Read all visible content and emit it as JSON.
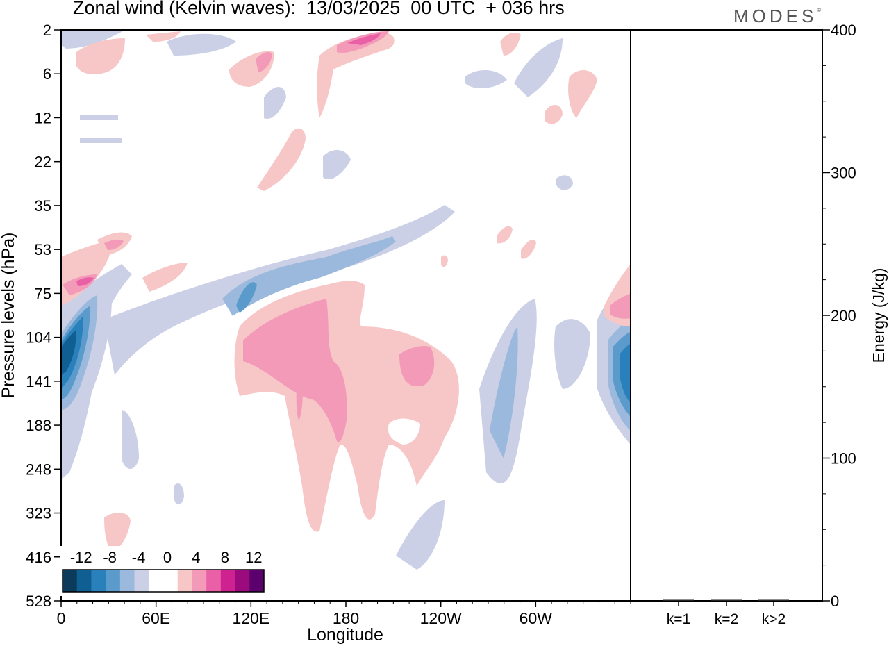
{
  "header": {
    "title": "Zonal wind (Kelvin waves):  13/03/2025  00 UTC  + 036 hrs",
    "brand": "MODES",
    "brand_mark": "©"
  },
  "chart_data": [
    {
      "type": "heatmap",
      "title": "Zonal wind (Kelvin waves):  13/03/2025  00 UTC  + 036 hrs",
      "xlabel": "Longitude",
      "ylabel": "Pressure levels (hPa)",
      "x_ticks": [
        "0",
        "60E",
        "120E",
        "180",
        "120W",
        "60W"
      ],
      "x_tick_degrees": [
        0,
        60,
        120,
        180,
        240,
        300
      ],
      "xlim": [
        0,
        360
      ],
      "y_ticks": [
        "2",
        "6",
        "12",
        "22",
        "35",
        "53",
        "75",
        "104",
        "141",
        "188",
        "248",
        "323",
        "416",
        "528"
      ],
      "colorbar": {
        "labels": [
          "-12",
          "-8",
          "-4",
          "0",
          "4",
          "8",
          "12"
        ],
        "colors": [
          "#0b3a5a",
          "#0f5f93",
          "#2a80bb",
          "#5b9bcc",
          "#9bb8dd",
          "#cbd0e6",
          "#ffffff",
          "#ffffff",
          "#f7c7c7",
          "#f39ab8",
          "#ea60a6",
          "#cd2290",
          "#9c0b7e",
          "#5c006e"
        ]
      },
      "features": [
        {
          "sign": "positive",
          "x_deg": [
            100,
            230
          ],
          "y_level": [
            75,
            248
          ],
          "strength": 6
        },
        {
          "sign": "positive",
          "x_deg": [
            150,
            190
          ],
          "y_level": [
            141,
            416
          ],
          "strength": 3
        },
        {
          "sign": "positive",
          "x_deg": [
            180,
            200
          ],
          "y_level": [
            2,
            6
          ],
          "strength": 9
        },
        {
          "sign": "positive",
          "x_deg": [
            0,
            40
          ],
          "y_level": [
            53,
            75
          ],
          "strength": 8
        },
        {
          "sign": "positive",
          "x_deg": [
            345,
            360
          ],
          "y_level": [
            75,
            104
          ],
          "strength": 6
        },
        {
          "sign": "negative",
          "x_deg": [
            0,
            30
          ],
          "y_level": [
            75,
            188
          ],
          "strength": -12
        },
        {
          "sign": "negative",
          "x_deg": [
            340,
            360
          ],
          "y_level": [
            104,
            188
          ],
          "strength": -10
        },
        {
          "sign": "negative",
          "x_deg": [
            50,
            240
          ],
          "y_level": [
            35,
            104
          ],
          "strength": -6
        },
        {
          "sign": "negative",
          "x_deg": [
            260,
            300
          ],
          "y_level": [
            104,
            323
          ],
          "strength": -6
        }
      ]
    },
    {
      "type": "bar",
      "ylabel": "Energy (J/kg)",
      "categories": [
        "k=1",
        "k=2",
        "k>2"
      ],
      "values": [
        0.6,
        0.2,
        0.4
      ],
      "ylim": [
        0,
        400
      ],
      "y_ticks": [
        0,
        100,
        200,
        300,
        400
      ]
    }
  ]
}
